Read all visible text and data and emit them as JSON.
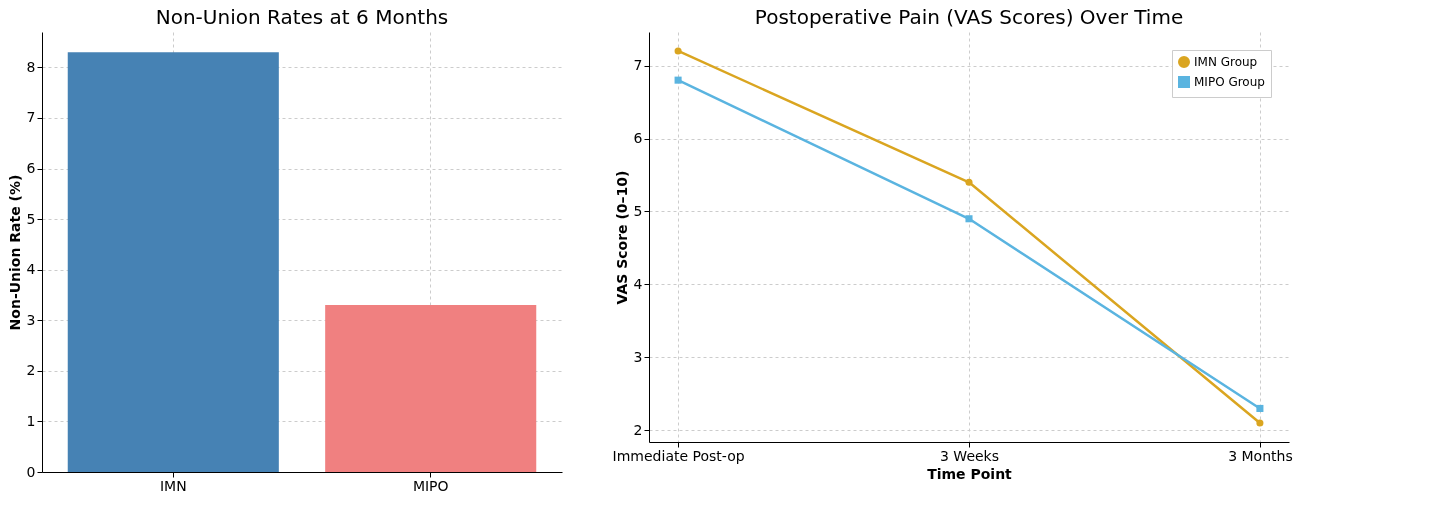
{
  "chart_data": [
    {
      "type": "bar",
      "title": "Non-Union Rates at 6 Months",
      "ylabel": "Non-Union Rate (%)",
      "categories": [
        "IMN",
        "MIPO"
      ],
      "values": [
        8.3,
        3.3
      ],
      "colors": [
        "#4682b4",
        "#f08080"
      ],
      "ylim": [
        0,
        8.7
      ],
      "yticks": [
        0,
        1,
        2,
        3,
        4,
        5,
        6,
        7,
        8
      ],
      "grid": true
    },
    {
      "type": "line",
      "title": "Postoperative Pain (VAS Scores) Over Time",
      "xlabel": "Time Point",
      "ylabel": "VAS Score (0–10)",
      "categories": [
        "Immediate Post-op",
        "3 Weeks",
        "3 Months"
      ],
      "series": [
        {
          "name": "IMN Group",
          "color": "#daa520",
          "values": [
            7.2,
            5.4,
            2.1
          ],
          "marker": "circle"
        },
        {
          "name": "MIPO Group",
          "color": "#5ab4e0",
          "values": [
            6.8,
            4.9,
            2.3
          ],
          "marker": "square"
        }
      ],
      "ylim": [
        1.84,
        7.46
      ],
      "yticks": [
        2,
        3,
        4,
        5,
        6,
        7
      ],
      "grid": true,
      "legend": "top right",
      "line_style": "solid"
    }
  ]
}
